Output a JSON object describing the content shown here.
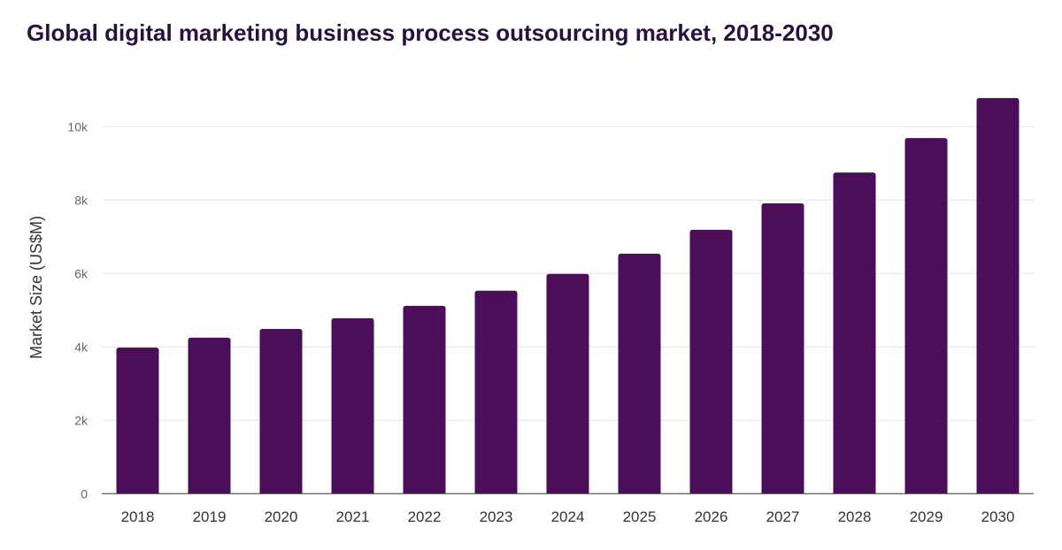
{
  "chart_data": {
    "type": "bar",
    "title": "Global digital marketing business process outsourcing market, 2018-2030",
    "xlabel": "",
    "ylabel": "Market Size (US$M)",
    "categories": [
      "2018",
      "2019",
      "2020",
      "2021",
      "2022",
      "2023",
      "2024",
      "2025",
      "2026",
      "2027",
      "2028",
      "2029",
      "2030"
    ],
    "values": [
      3980,
      4250,
      4490,
      4780,
      5120,
      5530,
      5990,
      6540,
      7190,
      7910,
      8750,
      9690,
      10780
    ],
    "ylim": [
      0,
      11000
    ],
    "yticks": [
      0,
      2000,
      4000,
      6000,
      8000,
      10000
    ],
    "ytick_labels": [
      "0",
      "2k",
      "4k",
      "6k",
      "8k",
      "10k"
    ],
    "grid": true,
    "colors": {
      "bar": "#4b0f59",
      "title": "#2b0f3f",
      "grid": "#e6e6e6"
    }
  }
}
